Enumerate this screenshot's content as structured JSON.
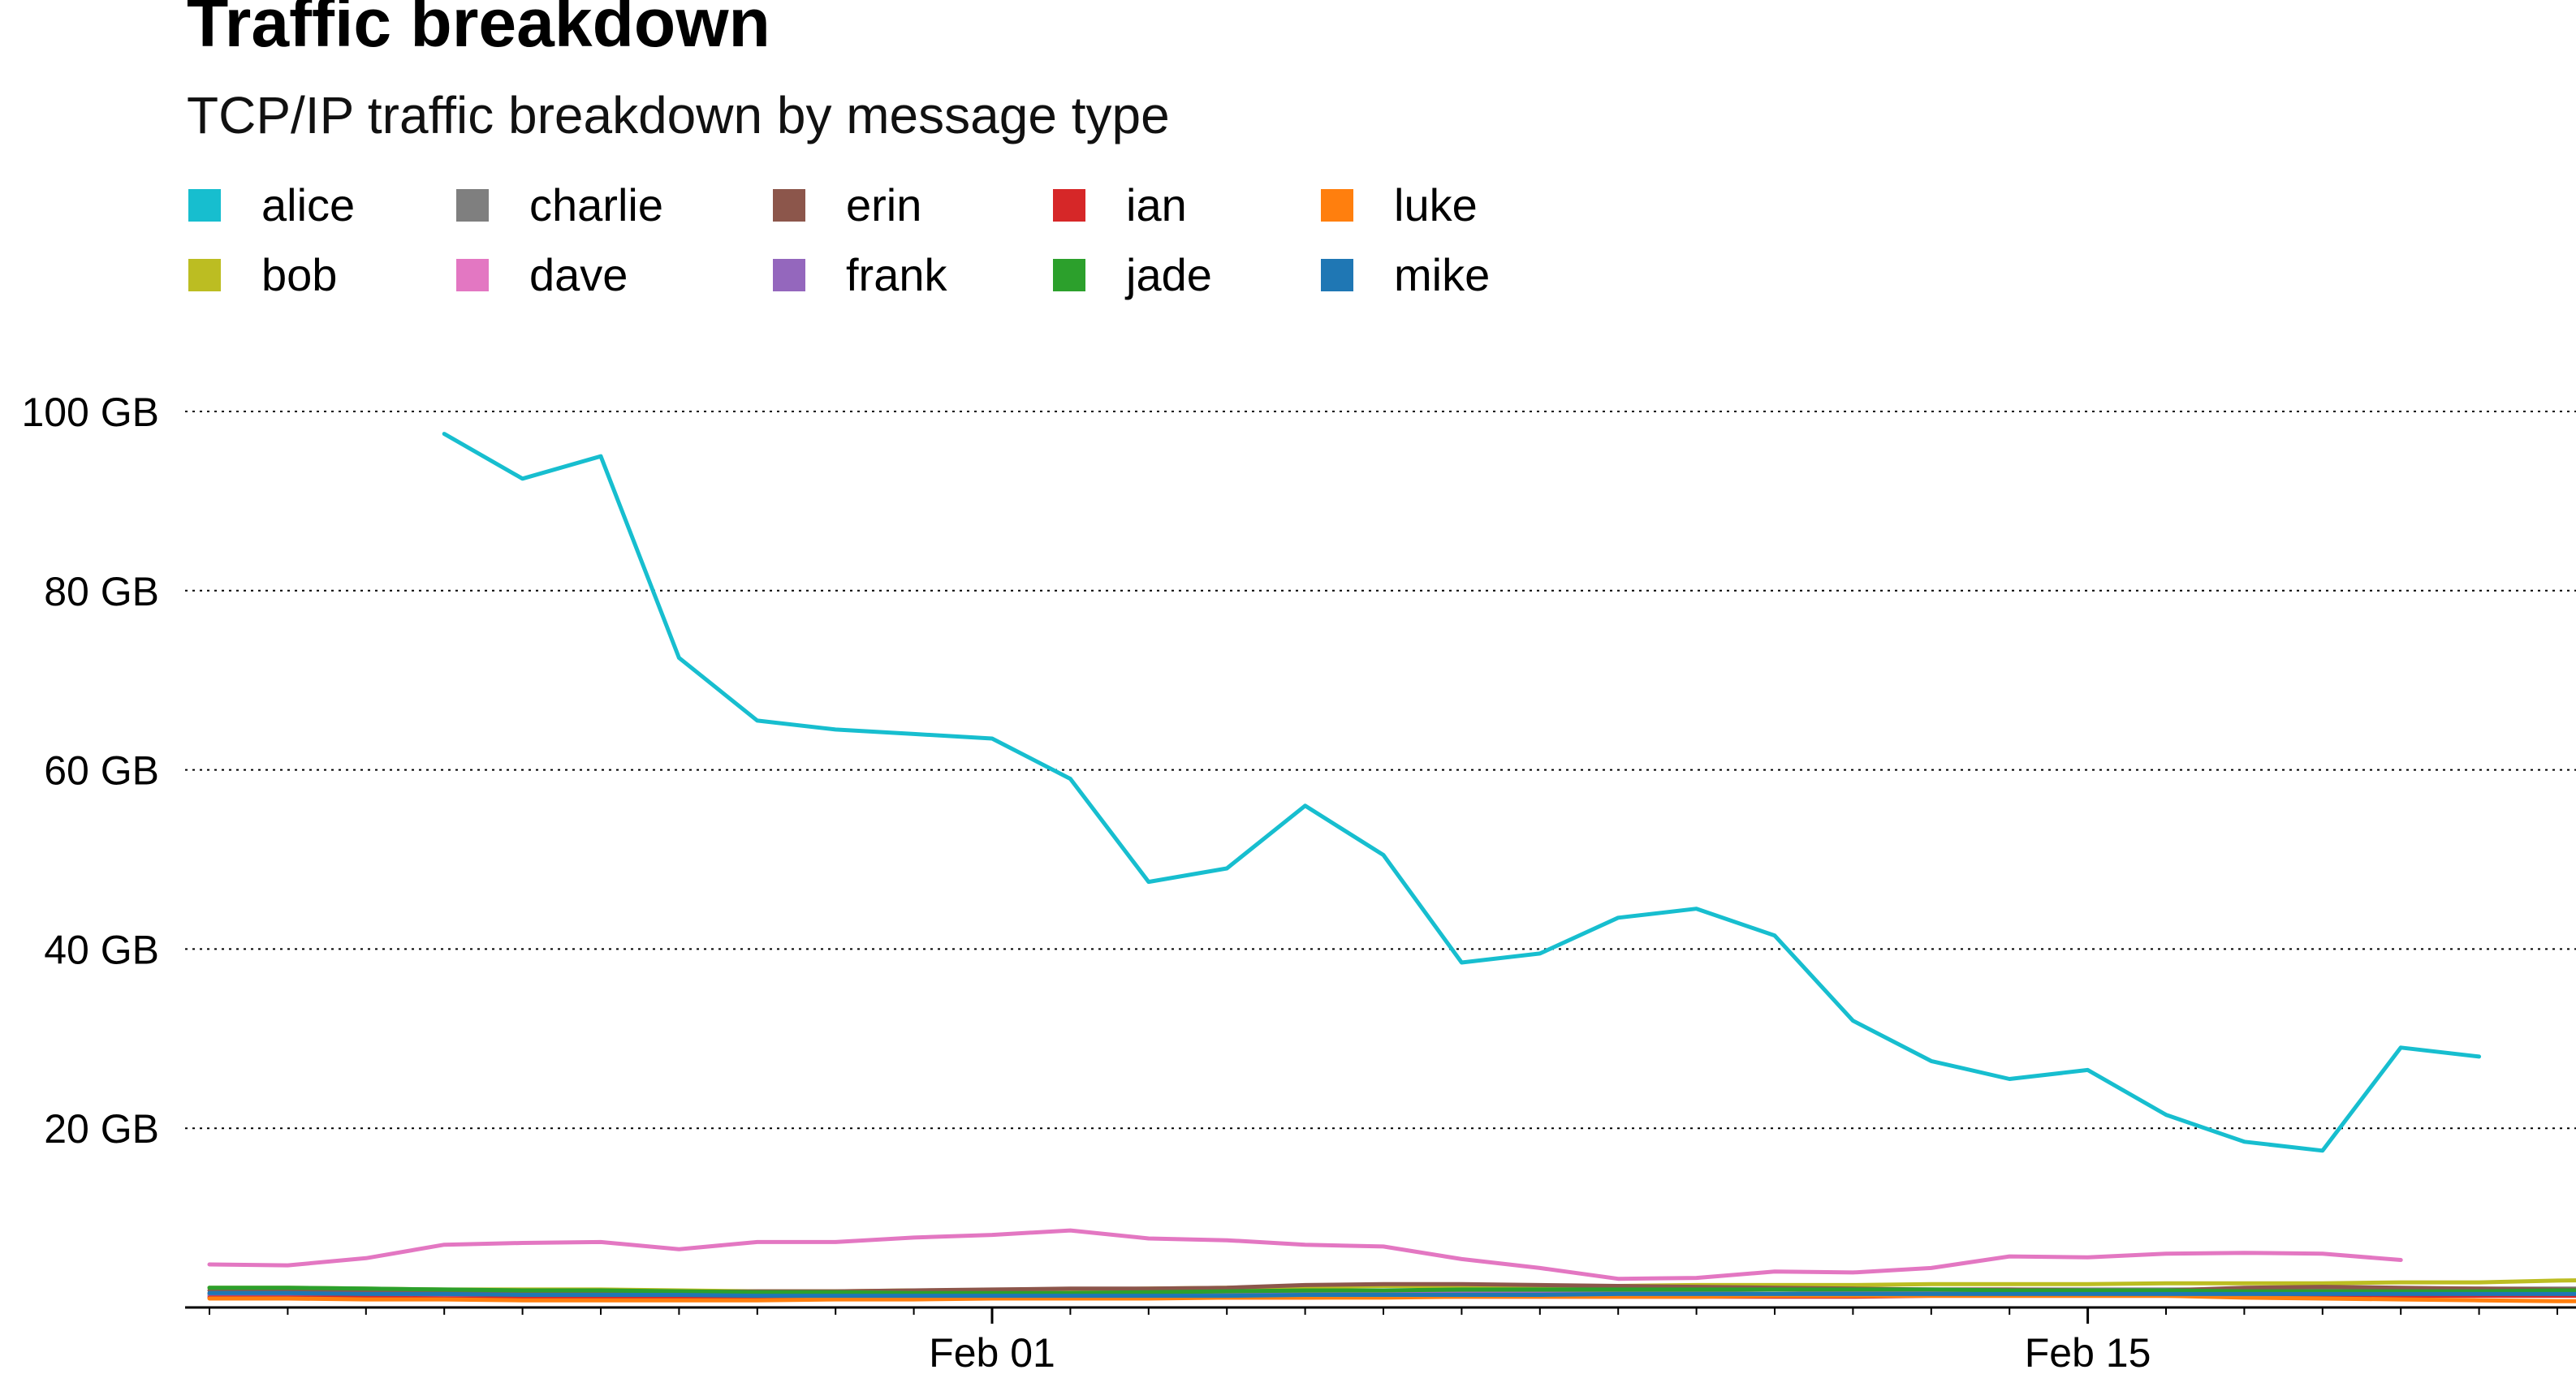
{
  "chart_data": {
    "type": "line",
    "title": "Traffic breakdown",
    "subtitle": "TCP/IP traffic breakdown by message type",
    "xlabel": "",
    "ylabel": "",
    "x_start": "2025-01-22",
    "x_tick_labels": [
      {
        "label": "Feb 01",
        "date": "2025-02-01"
      },
      {
        "label": "Feb 15",
        "date": "2025-02-15"
      }
    ],
    "y_ticks": [
      20,
      40,
      60,
      80,
      100
    ],
    "y_tick_labels": [
      "20 GB",
      "40 GB",
      "60 GB",
      "80 GB",
      "100 GB"
    ],
    "ylim": [
      0,
      100
    ],
    "y_unit": "GB",
    "grid": "horizontal dotted",
    "legend_position": "top-left",
    "series": [
      {
        "name": "alice",
        "color": "#17becf",
        "start": "2025-01-25",
        "values": [
          97.5,
          92.5,
          95,
          72.5,
          65.5,
          64.5,
          64,
          63.5,
          59,
          47.5,
          49,
          56,
          50.5,
          38.5,
          39.5,
          43.5,
          44.5,
          41.5,
          32,
          27.5,
          25.5,
          26.5,
          21.5,
          18.5,
          17.5,
          29,
          28
        ]
      },
      {
        "name": "bob",
        "color": "#bcbd22",
        "start": "2025-01-22",
        "values": [
          2.2,
          2.2,
          2.1,
          2.0,
          2.0,
          2.0,
          1.9,
          1.8,
          1.8,
          1.9,
          1.9,
          2.0,
          2.1,
          2.2,
          2.3,
          2.4,
          2.4,
          2.4,
          2.4,
          2.5,
          2.5,
          2.5,
          2.6,
          2.6,
          2.6,
          2.7,
          2.7,
          2.7,
          2.8,
          2.8,
          3.0,
          3.1
        ]
      },
      {
        "name": "charlie",
        "color": "#7f7f7f",
        "start": "2025-01-22",
        "values": [
          1.5,
          1.5,
          1.5,
          1.4,
          1.4,
          1.4,
          1.4,
          1.4,
          1.5,
          1.5,
          1.6,
          1.6,
          1.7,
          1.7,
          1.8,
          1.8,
          1.8,
          1.9,
          1.9,
          1.9,
          2.0,
          2.0,
          2.0,
          2.0,
          2.0,
          2.0,
          2.0,
          2.0,
          2.1,
          2.1,
          2.1,
          2.1
        ]
      },
      {
        "name": "dave",
        "color": "#e377c2",
        "start": "2025-01-22",
        "values": [
          4.8,
          4.7,
          5.5,
          7.0,
          7.2,
          7.3,
          6.5,
          7.3,
          7.3,
          7.8,
          8.1,
          8.6,
          7.7,
          7.5,
          7.0,
          6.8,
          5.4,
          4.4,
          3.2,
          3.3,
          4.0,
          3.9,
          4.4,
          5.7,
          5.6,
          6.0,
          6.1,
          6.0,
          5.3
        ]
      },
      {
        "name": "erin",
        "color": "#8c564b",
        "start": "2025-01-22",
        "values": [
          1.9,
          1.9,
          1.8,
          1.8,
          1.8,
          1.7,
          1.7,
          1.8,
          1.8,
          1.9,
          2.0,
          2.1,
          2.1,
          2.2,
          2.5,
          2.6,
          2.6,
          2.5,
          2.4,
          2.3,
          2.2,
          2.1,
          2.0,
          2.0,
          1.9,
          1.9,
          2.2,
          2.3,
          2.2,
          2.1,
          2.0,
          1.9
        ]
      },
      {
        "name": "frank",
        "color": "#9467bd",
        "start": "2025-01-22",
        "values": [
          1.3,
          1.3,
          1.3,
          1.2,
          1.2,
          1.2,
          1.2,
          1.2,
          1.3,
          1.3,
          1.3,
          1.3,
          1.4,
          1.4,
          1.4,
          1.5,
          1.5,
          1.5,
          1.5,
          1.5,
          1.5,
          1.6,
          1.6,
          1.6,
          1.6,
          1.6,
          1.6,
          1.6,
          1.6,
          1.6,
          1.6,
          1.6
        ]
      },
      {
        "name": "ian",
        "color": "#d62728",
        "start": "2025-01-22",
        "values": [
          1.1,
          1.1,
          1.1,
          1.0,
          1.0,
          1.0,
          1.0,
          1.0,
          1.0,
          1.0,
          1.1,
          1.1,
          1.1,
          1.1,
          1.1,
          1.2,
          1.2,
          1.2,
          1.2,
          1.2,
          1.2,
          1.2,
          1.3,
          1.3,
          1.3,
          1.3,
          1.3,
          1.3,
          1.3,
          1.3,
          1.3,
          1.3
        ]
      },
      {
        "name": "jade",
        "color": "#2ca02c",
        "start": "2025-01-22",
        "values": [
          2.2,
          2.2,
          2.1,
          2.0,
          1.9,
          1.9,
          1.8,
          1.7,
          1.7,
          1.6,
          1.6,
          1.6,
          1.7,
          1.8,
          1.9,
          1.9,
          2.0,
          2.0,
          2.0,
          2.0,
          2.0,
          2.0,
          2.0,
          1.9,
          1.9,
          1.9,
          1.8,
          1.8,
          1.8,
          1.8,
          1.9,
          1.9
        ]
      },
      {
        "name": "luke",
        "color": "#ff7f0e",
        "start": "2025-01-22",
        "values": [
          1.0,
          1.0,
          0.9,
          0.9,
          0.8,
          0.8,
          0.8,
          0.8,
          0.9,
          0.9,
          1.0,
          1.0,
          1.0,
          1.1,
          1.1,
          1.1,
          1.2,
          1.2,
          1.2,
          1.2,
          1.3,
          1.3,
          1.3,
          1.3,
          1.3,
          1.3,
          1.1,
          1.0,
          0.9,
          0.8,
          0.7,
          0.7
        ]
      },
      {
        "name": "mike",
        "color": "#1f77b4",
        "start": "2025-01-22",
        "values": [
          1.6,
          1.6,
          1.5,
          1.5,
          1.4,
          1.4,
          1.4,
          1.3,
          1.3,
          1.3,
          1.3,
          1.3,
          1.3,
          1.3,
          1.4,
          1.4,
          1.4,
          1.4,
          1.5,
          1.5,
          1.5,
          1.5,
          1.5,
          1.5,
          1.5,
          1.5,
          1.5,
          1.5,
          1.5,
          1.5,
          1.5,
          1.5
        ]
      }
    ]
  }
}
